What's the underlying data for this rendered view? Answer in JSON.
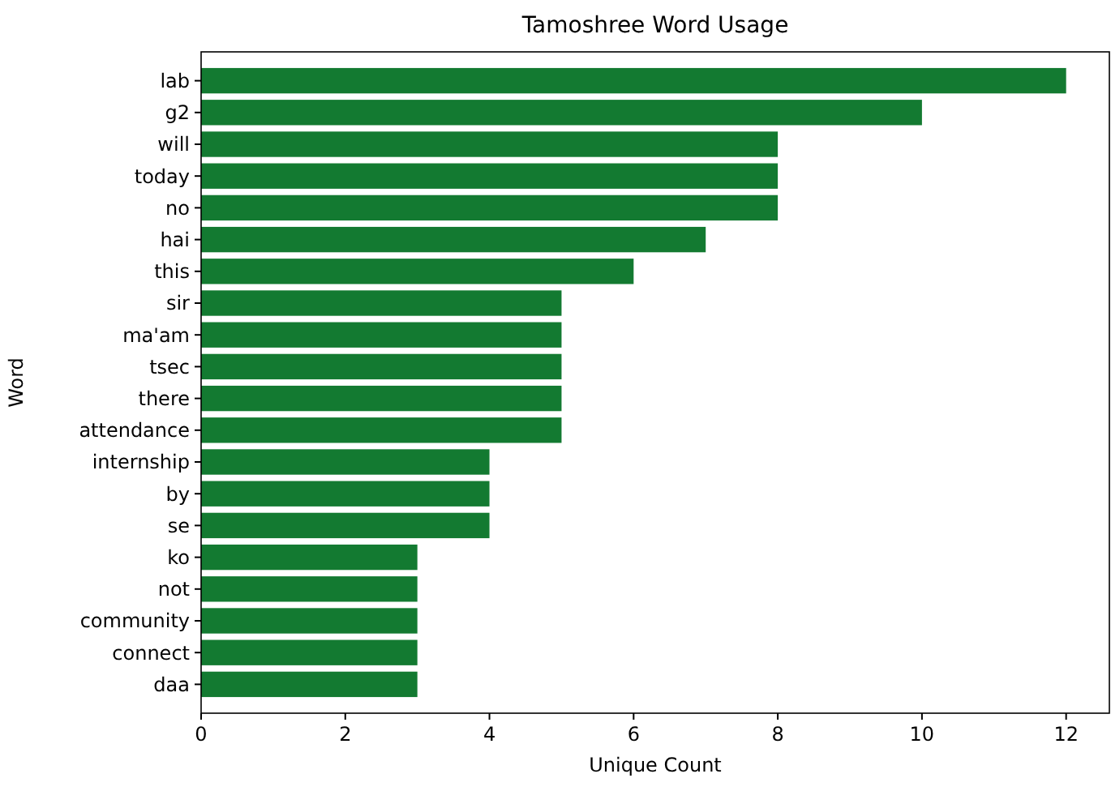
{
  "chart_data": {
    "type": "bar",
    "orientation": "horizontal",
    "title": "Tamoshree Word Usage",
    "xlabel": "Unique Count",
    "ylabel": "Word",
    "categories": [
      "lab",
      "g2",
      "will",
      "today",
      "no",
      "hai",
      "this",
      "sir",
      "ma'am",
      "tsec",
      "there",
      "attendance",
      "internship",
      "by",
      "se",
      "ko",
      "not",
      "community",
      "connect",
      "daa"
    ],
    "values": [
      12,
      10,
      8,
      8,
      8,
      7,
      6,
      5,
      5,
      5,
      5,
      5,
      4,
      4,
      4,
      3,
      3,
      3,
      3,
      3
    ],
    "color": "#137a31",
    "xlim": [
      0,
      12.6
    ],
    "xticks": [
      0,
      2,
      4,
      6,
      8,
      10,
      12
    ],
    "grid": false
  }
}
